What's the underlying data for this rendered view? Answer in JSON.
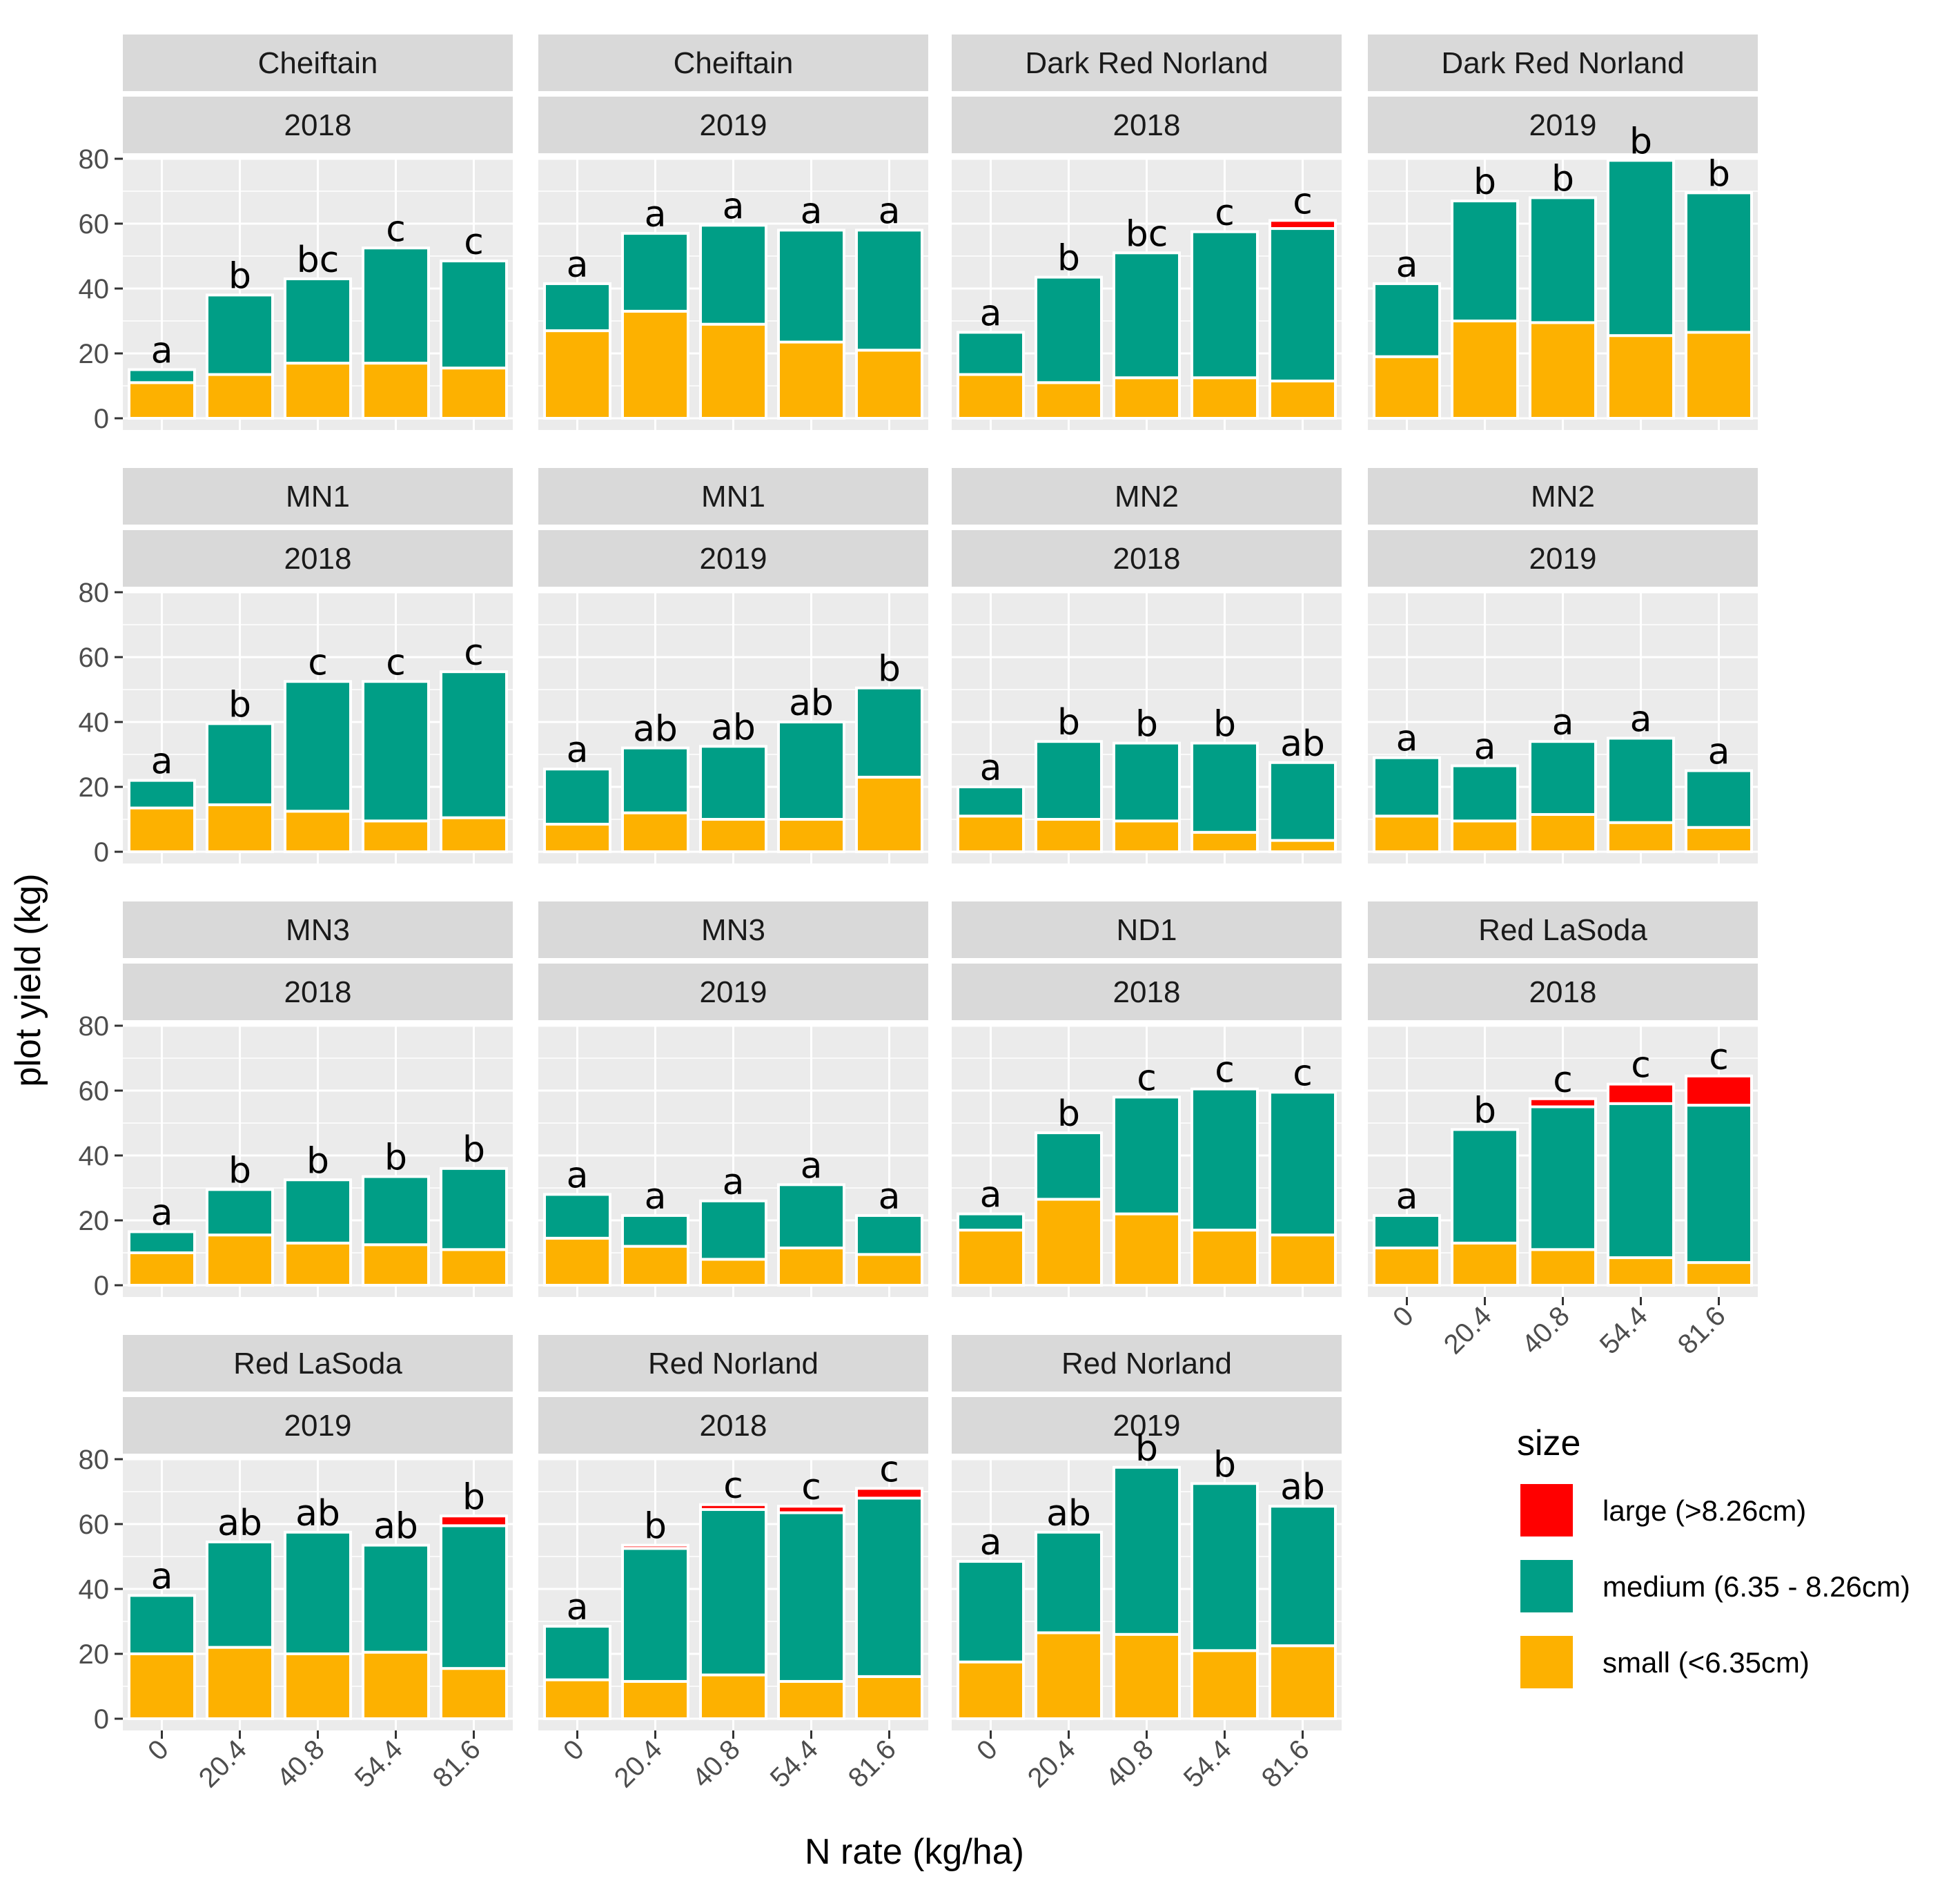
{
  "chart_data": {
    "type": "bar",
    "stacked": true,
    "xlabel": "N rate (kg/ha)",
    "ylabel": "plot yield (kg)",
    "categories": [
      "0",
      "20.4",
      "40.8",
      "54.4",
      "81.6"
    ],
    "ylim": [
      0,
      85
    ],
    "yticks": [
      "0",
      "20",
      "40",
      "60",
      "80"
    ],
    "colors": {
      "large": "#ff0000",
      "medium": "#009e86",
      "small": "#fdb100",
      "panel_bg": "#ebebeb",
      "strip_bg": "#d9d9d9",
      "grid": "#ffffff"
    },
    "legend": {
      "title": "size",
      "items": [
        {
          "key": "large",
          "label": "large (>8.26cm)"
        },
        {
          "key": "medium",
          "label": "medium (6.35 - 8.26cm)"
        },
        {
          "key": "small",
          "label": "small (<6.35cm)"
        }
      ]
    },
    "panels": [
      {
        "variety": "Cheiftain",
        "year": "2018",
        "small": [
          11,
          13.5,
          17,
          17,
          15.5
        ],
        "medium": [
          4,
          24.5,
          26,
          35.5,
          33
        ],
        "large": [
          0,
          0,
          0,
          0,
          0
        ],
        "letters": [
          "a",
          "b",
          "bc",
          "c",
          "c"
        ]
      },
      {
        "variety": "Cheiftain",
        "year": "2019",
        "small": [
          27,
          33,
          29,
          23.5,
          21
        ],
        "medium": [
          14.5,
          24,
          30.5,
          34.5,
          37
        ],
        "large": [
          0,
          0,
          0,
          0,
          0
        ],
        "letters": [
          "a",
          "a",
          "a",
          "a",
          "a"
        ]
      },
      {
        "variety": "Dark Red Norland",
        "year": "2018",
        "small": [
          13.5,
          11,
          12.5,
          12.5,
          11.5
        ],
        "medium": [
          13,
          32.5,
          38.5,
          45,
          47
        ],
        "large": [
          0,
          0,
          0,
          0,
          2.5
        ],
        "letters": [
          "a",
          "b",
          "bc",
          "c",
          "c"
        ]
      },
      {
        "variety": "Dark Red Norland",
        "year": "2019",
        "small": [
          19,
          30,
          29.5,
          25.5,
          26.5
        ],
        "medium": [
          22.5,
          37,
          38.5,
          54,
          43
        ],
        "large": [
          0,
          0,
          0,
          0,
          0
        ],
        "letters": [
          "a",
          "b",
          "b",
          "b",
          "b"
        ]
      },
      {
        "variety": "MN1",
        "year": "2018",
        "small": [
          13.5,
          14.5,
          12.5,
          9.5,
          10.5
        ],
        "medium": [
          8.5,
          25,
          40,
          43,
          45
        ],
        "large": [
          0,
          0,
          0,
          0,
          0
        ],
        "letters": [
          "a",
          "b",
          "c",
          "c",
          "c"
        ]
      },
      {
        "variety": "MN1",
        "year": "2019",
        "small": [
          8.5,
          12,
          10,
          10,
          23
        ],
        "medium": [
          17,
          20,
          22.5,
          30,
          27.5
        ],
        "large": [
          0,
          0,
          0,
          0,
          0
        ],
        "letters": [
          "a",
          "ab",
          "ab",
          "ab",
          "b"
        ]
      },
      {
        "variety": "MN2",
        "year": "2018",
        "small": [
          11,
          10,
          9.5,
          6,
          3.5
        ],
        "medium": [
          9,
          24,
          24,
          27.5,
          24
        ],
        "large": [
          0,
          0,
          0,
          0,
          0
        ],
        "letters": [
          "a",
          "b",
          "b",
          "b",
          "ab"
        ]
      },
      {
        "variety": "MN2",
        "year": "2019",
        "small": [
          11,
          9.5,
          11.5,
          9,
          7.5
        ],
        "medium": [
          18,
          17,
          22.5,
          26,
          17.5
        ],
        "large": [
          0,
          0,
          0,
          0,
          0
        ],
        "letters": [
          "a",
          "a",
          "a",
          "a",
          "a"
        ]
      },
      {
        "variety": "MN3",
        "year": "2018",
        "small": [
          10,
          15.5,
          13,
          12.5,
          11
        ],
        "medium": [
          6.5,
          14,
          19.5,
          21,
          25
        ],
        "large": [
          0,
          0,
          0,
          0,
          0
        ],
        "letters": [
          "a",
          "b",
          "b",
          "b",
          "b"
        ]
      },
      {
        "variety": "MN3",
        "year": "2019",
        "small": [
          14.5,
          12,
          8,
          11.5,
          9.5
        ],
        "medium": [
          13.5,
          9.5,
          18,
          19.5,
          12
        ],
        "large": [
          0,
          0,
          0,
          0,
          0
        ],
        "letters": [
          "a",
          "a",
          "a",
          "a",
          "a"
        ]
      },
      {
        "variety": "ND1",
        "year": "2018",
        "small": [
          17,
          26.5,
          22,
          17,
          15.5
        ],
        "medium": [
          5,
          20.5,
          36,
          43.5,
          44
        ],
        "large": [
          0,
          0,
          0,
          0,
          0
        ],
        "letters": [
          "a",
          "b",
          "c",
          "c",
          "c"
        ]
      },
      {
        "variety": "Red LaSoda",
        "year": "2018",
        "small": [
          11.5,
          13,
          11,
          8.5,
          7
        ],
        "medium": [
          10,
          35,
          44,
          47.5,
          48.5
        ],
        "large": [
          0,
          0,
          2.5,
          6,
          9
        ],
        "letters": [
          "a",
          "b",
          "c",
          "c",
          "c"
        ]
      },
      {
        "variety": "Red LaSoda",
        "year": "2019",
        "small": [
          20,
          22,
          20,
          20.5,
          15.5
        ],
        "medium": [
          18,
          32.5,
          37.5,
          33,
          44
        ],
        "large": [
          0,
          0,
          0,
          0,
          3
        ],
        "letters": [
          "a",
          "ab",
          "ab",
          "ab",
          "b"
        ]
      },
      {
        "variety": "Red Norland",
        "year": "2018",
        "small": [
          12,
          11.5,
          13.5,
          11.5,
          13
        ],
        "medium": [
          16.5,
          41,
          51,
          52,
          55
        ],
        "large": [
          0,
          1,
          1.5,
          2,
          3
        ],
        "letters": [
          "a",
          "b",
          "c",
          "c",
          "c"
        ]
      },
      {
        "variety": "Red Norland",
        "year": "2019",
        "small": [
          17.5,
          26.5,
          26,
          21,
          22.5
        ],
        "medium": [
          31,
          31,
          51.5,
          51.5,
          43
        ],
        "large": [
          0,
          0,
          0,
          0,
          0
        ],
        "letters": [
          "a",
          "ab",
          "b",
          "b",
          "ab"
        ]
      }
    ]
  }
}
